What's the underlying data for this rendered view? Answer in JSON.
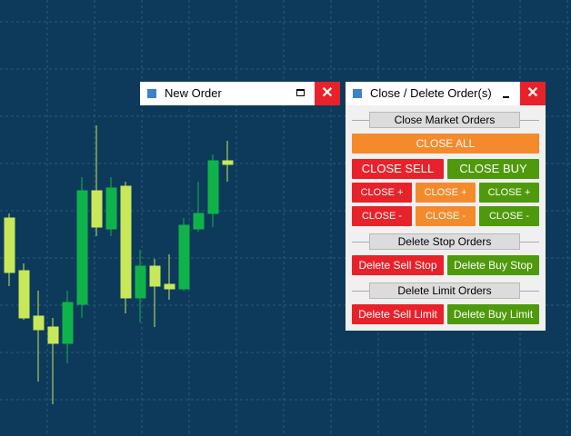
{
  "new_order": {
    "title": "New Order"
  },
  "close_panel": {
    "title": "Close / Delete Order(s)",
    "market": {
      "label": "Close Market Orders",
      "close_all": "CLOSE ALL",
      "close_sell": "CLOSE SELL",
      "close_buy": "CLOSE BUY",
      "plus": [
        "CLOSE +",
        "CLOSE +",
        "CLOSE +"
      ],
      "minus": [
        "CLOSE -",
        "CLOSE -",
        "CLOSE -"
      ]
    },
    "stop": {
      "label": "Delete Stop Orders",
      "sell": "Delete Sell Stop",
      "buy": "Delete Buy Stop"
    },
    "limit": {
      "label": "Delete Limit Orders",
      "sell": "Delete Sell Limit",
      "buy": "Delete Buy Limit"
    }
  }
}
